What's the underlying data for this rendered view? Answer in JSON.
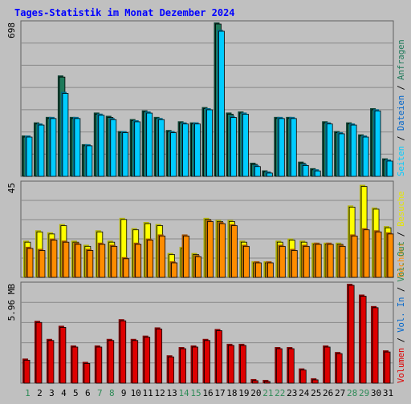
{
  "chart_data": {
    "type": "bar",
    "title": "Tages-Statistik im Monat Dezember 2024",
    "categories": [
      "1",
      "2",
      "3",
      "4",
      "5",
      "6",
      "7",
      "8",
      "9",
      "10",
      "11",
      "12",
      "13",
      "14",
      "15",
      "16",
      "17",
      "18",
      "19",
      "20",
      "21",
      "22",
      "23",
      "24",
      "25",
      "26",
      "27",
      "28",
      "29",
      "30",
      "31"
    ],
    "weekend_days": [
      "1",
      "7",
      "8",
      "14",
      "15",
      "21",
      "22",
      "28",
      "29"
    ],
    "colors": {
      "title": "#0000ff",
      "weekday_label": "#000000",
      "weekend_label": "#2e8b57",
      "anfragen": "#1e7a5a",
      "dateien": "#00ccff",
      "seiten": "#00c8f0",
      "besuche": "#ffff00",
      "rechner": "#ff8c00",
      "volumen": "#dd0000",
      "grid": "#888888",
      "plot_bg": "#c0c0c0"
    },
    "panels": [
      {
        "id": "hits",
        "max_label": "698",
        "ymax": 698,
        "series": [
          {
            "name": "Anfragen",
            "values": [
              180,
              240,
              265,
              455,
              265,
              140,
              285,
              270,
              200,
              255,
              295,
              265,
              205,
              245,
              240,
              310,
              698,
              285,
              290,
              55,
              20,
              265,
              265,
              60,
              30,
              245,
              200,
              240,
              185,
              305,
              75
            ]
          },
          {
            "name": "Dateien",
            "values": [
              180,
              235,
              265,
              380,
              265,
              140,
              280,
              260,
              200,
              250,
              290,
              260,
              200,
              240,
              240,
              305,
              665,
              270,
              285,
              45,
              15,
              265,
              265,
              50,
              25,
              240,
              195,
              235,
              180,
              300,
              70
            ]
          }
        ]
      },
      {
        "id": "visits",
        "max_label": "45",
        "ymax": 45,
        "series": [
          {
            "name": "Besuche",
            "values": [
              17,
              22,
              21,
              25,
              17,
              15,
              22,
              17,
              28,
              23,
              26,
              25,
              11,
              14,
              11,
              28,
              27,
              27,
              17,
              7,
              7,
              17,
              18,
              17,
              16,
              16,
              16,
              34,
              44,
              33,
              24
            ]
          },
          {
            "name": "Rechner",
            "values": [
              14,
              13,
              18,
              17,
              16,
              13,
              16,
              15,
              9,
              16,
              18,
              20,
              7,
              20,
              10,
              27,
              26,
              25,
              15,
              7,
              7,
              15,
              13,
              15,
              16,
              16,
              15,
              20,
              23,
              22,
              21
            ]
          }
        ]
      },
      {
        "id": "volume",
        "max_label": "5.96 MB",
        "ymax": 5.96,
        "series": [
          {
            "name": "Volumen",
            "values": [
              1.4,
              3.7,
              2.6,
              3.4,
              2.2,
              1.2,
              2.2,
              2.6,
              3.8,
              2.6,
              2.8,
              3.3,
              1.6,
              2.1,
              2.2,
              2.6,
              3.2,
              2.3,
              2.3,
              0.15,
              0.1,
              2.1,
              2.1,
              0.8,
              0.2,
              2.2,
              1.8,
              5.96,
              5.3,
              4.6,
              1.9
            ]
          }
        ]
      }
    ],
    "right_legend": {
      "hits": [
        {
          "text": "Anfragen",
          "color": "#1e7a5a"
        },
        {
          "text": "Dateien",
          "color": "#0066cc"
        },
        {
          "text": "Seiten",
          "color": "#00ccff"
        }
      ],
      "visits": [
        {
          "text": "Besuche",
          "color": "#e6e600"
        },
        {
          "text": "Rechner",
          "color": "#ff8c00"
        }
      ],
      "volume": [
        {
          "text": "Vol. Out",
          "color": "#2e8b57"
        },
        {
          "text": "Vol. In",
          "color": "#0066cc"
        },
        {
          "text": "Volumen",
          "color": "#dd0000"
        }
      ]
    },
    "legend_separator": "/"
  }
}
